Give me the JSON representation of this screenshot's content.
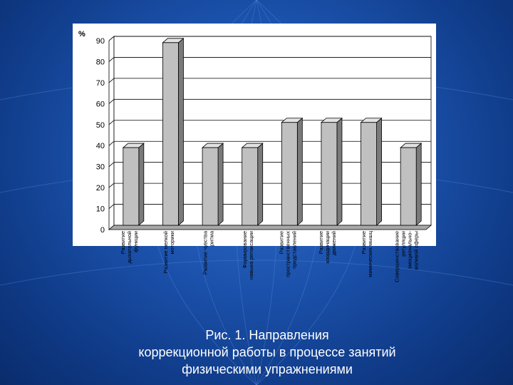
{
  "caption": {
    "line1": "Рис. 1.  Направления",
    "line2": "коррекционной работы в процессе занятий",
    "line3": "физическими упражнениями"
  },
  "colors": {
    "bar_front": "#c0c0c0",
    "bar_side": "#7a7a7a",
    "bar_top": "#e2e2e2",
    "panel": "#ffffff",
    "floor": "#a8a8a8"
  },
  "chart_data": {
    "type": "bar",
    "ylabel": "%",
    "ylim": [
      0,
      90
    ],
    "yticks": [
      "0",
      "10",
      "20",
      "30",
      "40",
      "50",
      "60",
      "70",
      "80",
      "90"
    ],
    "grid": true,
    "categories": [
      [
        "Развитие",
        "дыхательной",
        "функции"
      ],
      [
        "Развитие мелкой",
        "моторики"
      ],
      [
        "Развитие чувства",
        "ритма"
      ],
      [
        "Формирование",
        "навыка релаксации"
      ],
      [
        "Развитие",
        "пространственных",
        "представлений"
      ],
      [
        "Развитие",
        "координации",
        "движений"
      ],
      [
        "Развитие",
        "мимических мышц"
      ],
      [
        "Совершенствование",
        "регуляции",
        "эмоционально-",
        "волевой сферы"
      ]
    ],
    "values": [
      37,
      87,
      37,
      37,
      49,
      49,
      49,
      37
    ]
  }
}
